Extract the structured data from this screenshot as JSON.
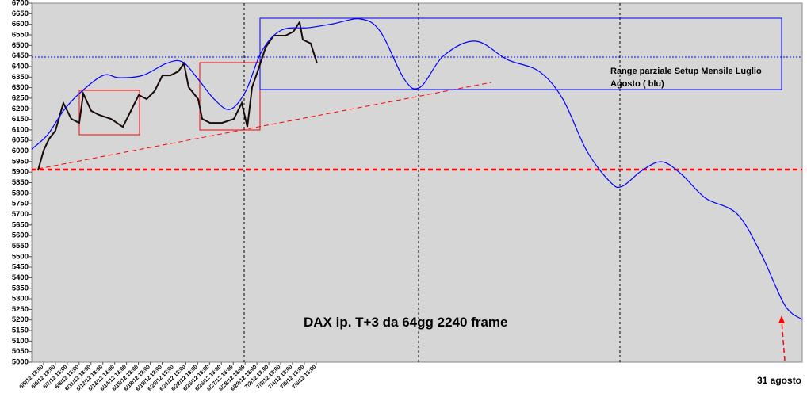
{
  "chart_data": {
    "type": "line",
    "annotations": {
      "range_line1": "Range  parziale Setup Mensile Luglio",
      "range_line2": "Agosto ( blu)",
      "main": "DAX ip. T+3  da 64gg 2240 frame",
      "date_note": "31 agosto"
    },
    "xlim": [
      0,
      65
    ],
    "xticks": [
      {
        "value": 1,
        "label": "6/5/12 13:00"
      },
      {
        "value": 2,
        "label": "6/6/12 13:00"
      },
      {
        "value": 3,
        "label": "6/7/12 13:00"
      },
      {
        "value": 4,
        "label": "6/8/12 13:00"
      },
      {
        "value": 5,
        "label": "6/11/12 13:00"
      },
      {
        "value": 6,
        "label": "6/12/12 13:00"
      },
      {
        "value": 7,
        "label": "6/13/12 13:00"
      },
      {
        "value": 8,
        "label": "6/14/12 13:00"
      },
      {
        "value": 9,
        "label": "6/15/12 13:00"
      },
      {
        "value": 10,
        "label": "6/18/12 13:00"
      },
      {
        "value": 11,
        "label": "6/19/12 13:00"
      },
      {
        "value": 12,
        "label": "6/20/12 13:00"
      },
      {
        "value": 13,
        "label": "6/21/12 13:00"
      },
      {
        "value": 14,
        "label": "6/22/12 13:00"
      },
      {
        "value": 15,
        "label": "6/25/12 13:00"
      },
      {
        "value": 16,
        "label": "6/26/12 13:00"
      },
      {
        "value": 17,
        "label": "6/27/12 13:00"
      },
      {
        "value": 18,
        "label": "6/28/12 13:00"
      },
      {
        "value": 19,
        "label": "6/29/12 13:00"
      },
      {
        "value": 20,
        "label": "7/2/12 13:00"
      },
      {
        "value": 21,
        "label": "7/3/12 13:00"
      },
      {
        "value": 22,
        "label": "7/4/12 13:00"
      },
      {
        "value": 23,
        "label": "7/5/12 13:00"
      },
      {
        "value": 24,
        "label": "7/6/12 13:00"
      }
    ],
    "ylim": [
      5000,
      6700
    ],
    "yticks": [
      5000,
      5050,
      5100,
      5150,
      5200,
      5250,
      5300,
      5350,
      5400,
      5450,
      5500,
      5550,
      5600,
      5650,
      5700,
      5750,
      5800,
      5850,
      5900,
      5950,
      6000,
      6050,
      6100,
      6150,
      6200,
      6250,
      6300,
      6350,
      6400,
      6450,
      6500,
      6550,
      6600,
      6650,
      6700
    ],
    "series": [
      {
        "color": "#1a0a0a",
        "x": [
          0.53,
          1.0,
          1.47,
          2.0,
          2.67,
          3.34,
          4.01,
          4.35,
          5.02,
          5.68,
          6.69,
          7.69,
          8.36,
          9.03,
          9.7,
          10.36,
          11.03,
          11.7,
          12.37,
          12.84,
          13.24,
          14.04,
          14.38,
          15.05,
          16.05,
          17.05,
          17.72,
          18.19,
          18.59,
          19.06,
          19.73,
          20.4,
          21.4,
          22.07,
          22.6,
          22.87,
          23.54,
          24.07
        ],
        "values": [
          5908,
          6002,
          6058,
          6096,
          6227,
          6152,
          6133,
          6272,
          6190,
          6171,
          6152,
          6114,
          6190,
          6265,
          6246,
          6283,
          6358,
          6358,
          6377,
          6415,
          6302,
          6246,
          6152,
          6133,
          6133,
          6152,
          6227,
          6114,
          6302,
          6377,
          6490,
          6546,
          6546,
          6565,
          6610,
          6527,
          6509,
          6415
        ]
      },
      {
        "color": "#0000ff",
        "x": [
          0,
          1.34,
          2.67,
          4.01,
          6.02,
          7.36,
          9.36,
          11.37,
          12.71,
          14.04,
          15.38,
          16.72,
          18.05,
          19.39,
          21.06,
          23.4,
          25.41,
          27.75,
          29.42,
          31.43,
          32.77,
          34.77,
          37.45,
          40.12,
          42.8,
          44.8,
          46.81,
          48.82,
          49.82,
          51.49,
          53.16,
          54.83,
          56.84,
          59.51,
          61.52,
          63.53,
          65.0
        ],
        "values": [
          6009,
          6077,
          6190,
          6272,
          6358,
          6347,
          6358,
          6415,
          6422,
          6340,
          6246,
          6197,
          6283,
          6471,
          6572,
          6584,
          6602,
          6625,
          6565,
          6340,
          6302,
          6452,
          6520,
          6433,
          6377,
          6246,
          6002,
          5852,
          5833,
          5908,
          5949,
          5889,
          5777,
          5702,
          5514,
          5270,
          5202
        ]
      }
    ]
  }
}
